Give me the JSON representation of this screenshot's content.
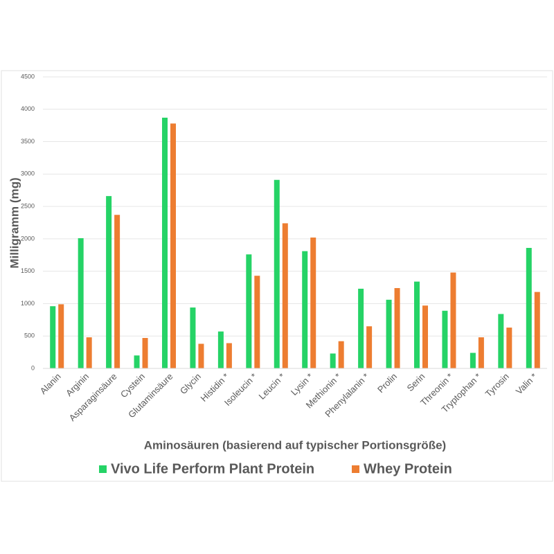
{
  "chart_data": {
    "type": "bar",
    "x_label": "Aminosäuren (basierend auf typischer Portionsgröße)",
    "y_label": "Milligramm (mg)",
    "categories": [
      "Alanin",
      "Arginin",
      "Asparaginsäure",
      "Cystein",
      "Glutaminsäure",
      "Glycin",
      "Histidin *",
      "Isoleucin *",
      "Leucin *",
      "Lysin *",
      "Methionin *",
      "Phenylalanin *",
      "Prolin",
      "Serin",
      "Threonin *",
      "Tryptophan *",
      "Tyrosin",
      "Valin *"
    ],
    "series": [
      {
        "name": "Vivo Life Perform Plant Protein",
        "color": "#25d366",
        "values": [
          960,
          2010,
          2660,
          200,
          3870,
          940,
          570,
          1760,
          2910,
          1810,
          230,
          1230,
          1060,
          1340,
          890,
          240,
          840,
          1860
        ]
      },
      {
        "name": "Whey Protein",
        "color": "#ed7d31",
        "values": [
          990,
          480,
          2370,
          470,
          3780,
          380,
          390,
          1430,
          2240,
          2020,
          420,
          650,
          1240,
          970,
          1480,
          480,
          630,
          1180
        ]
      }
    ],
    "ylim": [
      0,
      4500
    ],
    "yticks": [
      0,
      500,
      1000,
      1500,
      2000,
      2500,
      3000,
      3500,
      4000,
      4500
    ],
    "grid": true
  }
}
